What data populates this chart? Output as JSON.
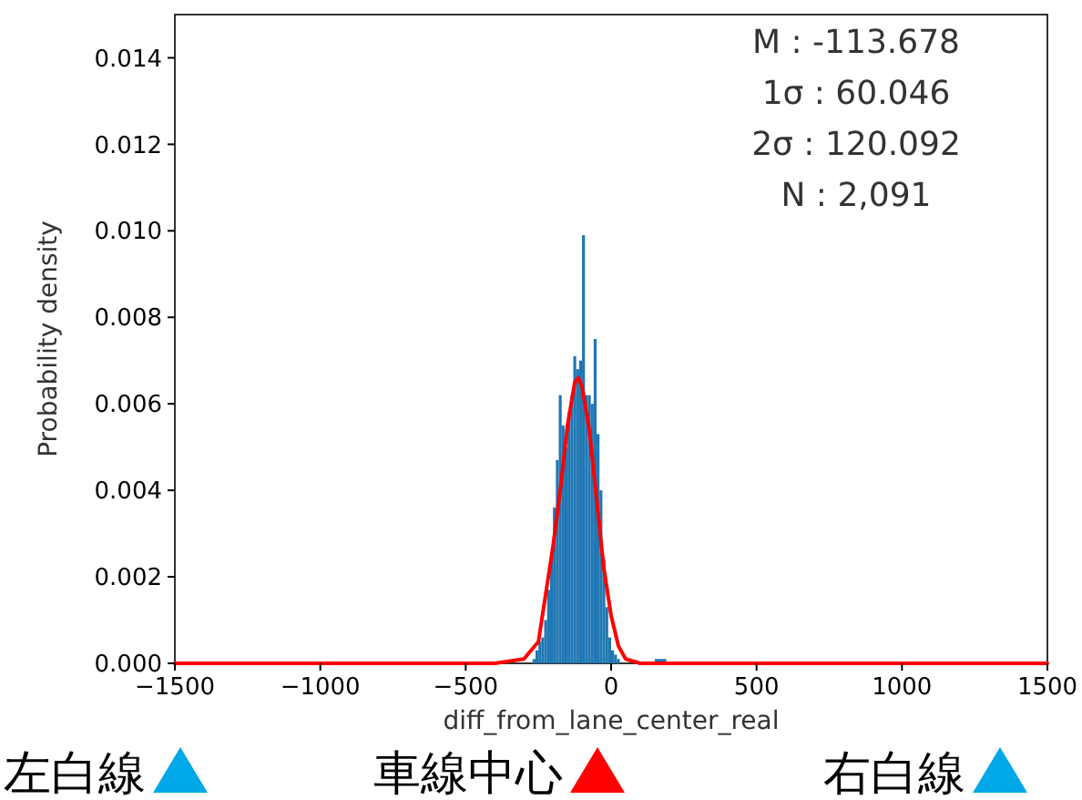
{
  "chart_data": {
    "type": "histogram",
    "xlabel": "diff_from_lane_center_real",
    "ylabel": "Probability density",
    "bins": [
      -270,
      -260,
      -250,
      -240,
      -230,
      -220,
      -210,
      -200,
      -190,
      -180,
      -170,
      -160,
      -150,
      -140,
      -130,
      -120,
      -110,
      -100,
      -90,
      -80,
      -70,
      -60,
      -50,
      -40,
      -30,
      -20,
      -10,
      0,
      10,
      20,
      30,
      150,
      190
    ],
    "values": [
      0.0001,
      0.0003,
      0.0005,
      0.0006,
      0.001,
      0.0017,
      0.0024,
      0.0036,
      0.0047,
      0.0062,
      0.0055,
      0.005,
      0.0058,
      0.0062,
      0.0071,
      0.0068,
      0.007,
      0.0099,
      0.0062,
      0.0062,
      0.006,
      0.0075,
      0.0053,
      0.004,
      0.0024,
      0.0013,
      0.0006,
      0.0003,
      0.0002,
      0.0001,
      0,
      0.0001
    ],
    "color": "#1f77b4",
    "series": [
      {
        "type": "line",
        "color": "#ff0000",
        "x": [
          -1500,
          -400,
          -300,
          -250,
          -200,
          -175,
          -150,
          -125,
          -113,
          -100,
          -75,
          -50,
          -25,
          0,
          25,
          50,
          100,
          1500
        ],
        "values": [
          0,
          0,
          0.0001,
          0.0005,
          0.0027,
          0.004,
          0.0055,
          0.0065,
          0.0066,
          0.0064,
          0.0054,
          0.0038,
          0.0022,
          0.0011,
          0.0004,
          0.0001,
          0,
          0
        ]
      }
    ],
    "xlim": [
      -1500,
      1500
    ],
    "xticks": [
      {
        "value": -1500,
        "label": "−1500"
      },
      {
        "value": -1000,
        "label": "−1000"
      },
      {
        "value": -500,
        "label": "−500"
      },
      0,
      500,
      1000,
      1500
    ],
    "ylim": [
      0,
      0.015
    ],
    "yticks": [
      {
        "value": 0,
        "label": "0.000"
      },
      {
        "value": 0.002,
        "label": "0.002"
      },
      {
        "value": 0.004,
        "label": "0.004"
      },
      {
        "value": 0.006,
        "label": "0.006"
      },
      {
        "value": 0.008,
        "label": "0.008"
      },
      {
        "value": 0.01,
        "label": "0.010"
      },
      {
        "value": 0.012,
        "label": "0.012"
      },
      {
        "value": 0.014,
        "label": "0.014"
      }
    ],
    "grid": false,
    "annotations": [
      "M : -113.678",
      "1σ : 60.046",
      "2σ : 120.092",
      "N : 2,091",
      "左白線",
      "車線中心",
      "右白線"
    ]
  }
}
